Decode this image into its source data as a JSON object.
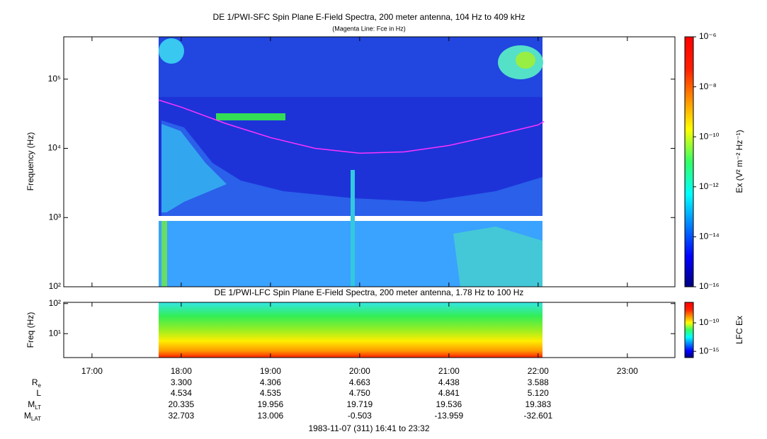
{
  "chart_data": [
    {
      "type": "spectrogram",
      "title": "DE 1/PWI-SFC  Spin Plane E-Field Spectra, 200 meter antenna, 104 Hz to 409 kHz",
      "subtitle": "(Magenta Line: Fce in Hz)",
      "ylabel": "Frequency (Hz)",
      "log_y": true,
      "xlim": [
        1001,
        1412
      ],
      "ylim": [
        100,
        409000
      ],
      "yticks": [
        {
          "value": 100,
          "label": "10²"
        },
        {
          "value": 1000,
          "label": "10³"
        },
        {
          "value": 10000,
          "label": "10⁴"
        },
        {
          "value": 100000,
          "label": "10⁵"
        }
      ],
      "fce": {
        "color": "#ff33ff",
        "x": [
          1065,
          1080,
          1110,
          1140,
          1170,
          1200,
          1230,
          1260,
          1290,
          1320,
          1324
        ],
        "values": [
          49800,
          39400,
          22800,
          14300,
          10000,
          8500,
          8900,
          11000,
          15300,
          21800,
          24500
        ]
      },
      "colorbar": {
        "label": "Ex (V² m⁻² Hz⁻¹)",
        "lim": [
          1e-16,
          1e-06
        ],
        "ticks": [
          {
            "value": 1e-06,
            "label": "10⁻⁶"
          },
          {
            "value": 1e-08,
            "label": "10⁻⁸"
          },
          {
            "value": 1e-10,
            "label": "10⁻¹⁰"
          },
          {
            "value": 1e-12,
            "label": "10⁻¹²"
          },
          {
            "value": 1e-14,
            "label": "10⁻¹⁴"
          },
          {
            "value": 1e-16,
            "label": "10⁻¹⁶"
          }
        ]
      }
    },
    {
      "type": "spectrogram",
      "title": "DE 1/PWI-LFC  Spin Plane E-Field Spectra, 200 meter antenna, 1.78 Hz to 100 Hz",
      "ylabel": "Freq (Hz)",
      "log_y": true,
      "xlim": [
        1001,
        1412
      ],
      "ylim": [
        1.6,
        110
      ],
      "yticks": [
        {
          "value": 10,
          "label": "10¹"
        },
        {
          "value": 100,
          "label": "10²"
        }
      ],
      "xticks": [
        {
          "value": 1020,
          "label": "17:00"
        },
        {
          "value": 1080,
          "label": "18:00"
        },
        {
          "value": 1140,
          "label": "19:00"
        },
        {
          "value": 1200,
          "label": "20:00"
        },
        {
          "value": 1260,
          "label": "21:00"
        },
        {
          "value": 1320,
          "label": "22:00"
        },
        {
          "value": 1380,
          "label": "23:00"
        }
      ],
      "colorbar": {
        "label": "LFC Ex",
        "lim": [
          8e-17,
          4e-07
        ],
        "ticks": [
          {
            "value": 1e-10,
            "label": "10⁻¹⁰"
          },
          {
            "value": 1e-15,
            "label": "10⁻¹⁵"
          }
        ]
      }
    }
  ],
  "ephemeris": {
    "x": [
      1080,
      1140,
      1200,
      1260,
      1320
    ],
    "rows": [
      {
        "label": "R",
        "sub": "e",
        "values": [
          "3.300",
          "4.306",
          "4.663",
          "4.438",
          "3.588"
        ]
      },
      {
        "label": "L",
        "values": [
          "4.534",
          "4.535",
          "4.750",
          "4.841",
          "5.120"
        ]
      },
      {
        "label": "M",
        "sub": "LT",
        "values": [
          "20.335",
          "19.956",
          "19.719",
          "19.536",
          "19.383"
        ]
      },
      {
        "label": "M",
        "sub": "LAT",
        "values": [
          "32.703",
          "13.006",
          "-0.503",
          "-13.959",
          "-32.601"
        ]
      }
    ]
  },
  "footer": "1983-11-07 (311) 16:41 to 23:32"
}
